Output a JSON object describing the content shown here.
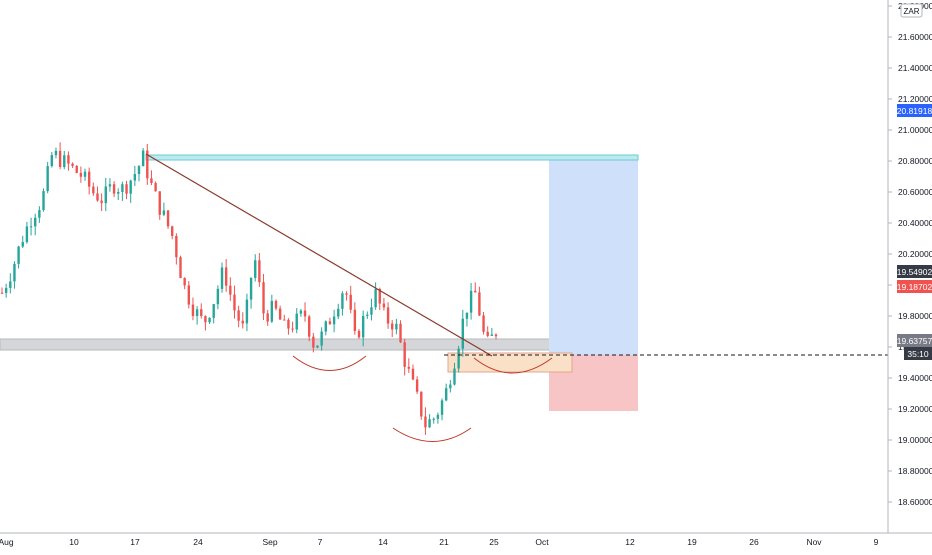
{
  "chart_data": {
    "type": "candlestick",
    "currency_label": "ZAR",
    "y_ticks": [
      "21.80000",
      "21.60000",
      "21.40000",
      "21.20000",
      "21.00000",
      "20.80000",
      "20.60000",
      "20.40000",
      "20.20000",
      "20.00000",
      "19.80000",
      "19.60000",
      "19.40000",
      "19.20000",
      "19.00000",
      "18.80000",
      "18.60000"
    ],
    "y_tick_values": [
      21.8,
      21.6,
      21.4,
      21.2,
      21.0,
      20.8,
      20.6,
      20.4,
      20.2,
      20.0,
      19.8,
      19.6,
      19.4,
      19.2,
      19.0,
      18.8,
      18.6
    ],
    "ylim": [
      18.4,
      21.85
    ],
    "x_ticks": [
      "Aug",
      "10",
      "17",
      "24",
      "Sep",
      "7",
      "14",
      "21",
      "25",
      "Oct",
      "12",
      "19",
      "26",
      "Nov",
      "9"
    ],
    "price_badges": {
      "target": "20.81918",
      "current": "19.54902",
      "stop": "19.18702",
      "support": "19.63757",
      "countdown": "35:10"
    },
    "colors": {
      "up": "#26a69a",
      "down": "#ef5350",
      "target_badge": "#2962ff",
      "current_badge": "#363a45",
      "stop_badge": "#ef5350",
      "support_badge": "#787b86",
      "profit_zone": "#cfe0fb",
      "loss_zone": "#f7c5c5",
      "trendline": "#8b3a2b"
    },
    "candles": {
      "trend": [
        19.95,
        20.1,
        20.3,
        20.45,
        20.55,
        20.85,
        20.8,
        20.75,
        20.7,
        20.6,
        20.55,
        20.65,
        20.62,
        20.7,
        20.82,
        20.6,
        20.45,
        20.3,
        20.0,
        19.85,
        19.75,
        19.9,
        20.1,
        19.85,
        19.7,
        20.2,
        19.8,
        19.85,
        19.72,
        19.75,
        19.82,
        19.6,
        19.7,
        19.85,
        20.0,
        19.65,
        19.8,
        19.95,
        19.78,
        19.75,
        19.5,
        19.3,
        19.1,
        19.15,
        19.3,
        19.55,
        19.85,
        19.95,
        19.6,
        19.7
      ]
    },
    "annotations": {
      "trendline": "diagonal resistance from mid-Aug high",
      "support_zone": [
        19.6,
        19.66
      ],
      "long_position": {
        "entry": 19.549,
        "target": 20.819,
        "stop": 19.187
      }
    }
  }
}
